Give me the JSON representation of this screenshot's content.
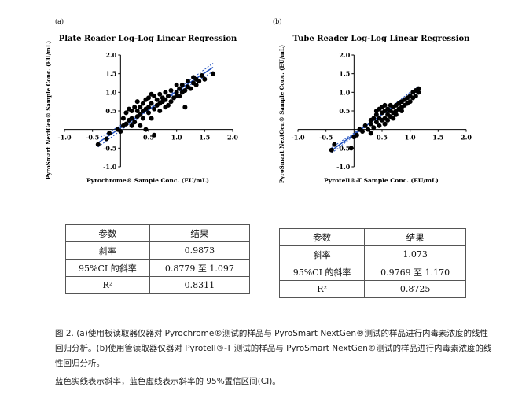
{
  "panels": [
    {
      "id": "a",
      "label": "(a)",
      "title": "Plate Reader Log-Log Linear Regression",
      "ylabel": "PyroSmart NextGen® Sample Conc. (EU/mL)",
      "xlabel": "Pyrochrome® Sample Conc. (EU/mL)",
      "table": {
        "headers": [
          "参数",
          "结果"
        ],
        "rows": [
          [
            "斜率",
            "0.9873"
          ],
          [
            "95%CI 的斜率",
            "0.8779 至 1.097"
          ],
          [
            "R²",
            "0.8311"
          ]
        ]
      }
    },
    {
      "id": "b",
      "label": "(b)",
      "title": "Tube Reader Log-Log Linear Regression",
      "ylabel": "PyroSmart NextGen® Sample Conc. (EU/mL)",
      "xlabel": "Pyrotell®-T Sample Conc. (EU/mL)",
      "table": {
        "headers": [
          "参数",
          "结果"
        ],
        "rows": [
          [
            "斜率",
            "1.073"
          ],
          [
            "95%CI 的斜率",
            "0.9769 至 1.170"
          ],
          [
            "R²",
            "0.8725"
          ]
        ]
      }
    }
  ],
  "caption": {
    "line1": "图 2. (a)使用板读取器仪器对 Pyrochrome®测试的样品与 PyroSmart NextGen®测试的样品进行内毒素浓度的线性回归分析。(b)使用管读取器仪器对 Pyrotell®-T 测试的样品与 PyroSmart NextGen®测试的样品进行内毒素浓度的线性回归分析。",
    "line2": "蓝色实线表示斜率，蓝色虚线表示斜率的 95%置信区间(CI)。"
  },
  "chart_data": [
    {
      "type": "scatter",
      "title": "Plate Reader Log-Log Linear Regression",
      "xlabel": "Pyrochrome® Sample Conc. (EU/mL)",
      "ylabel": "PyroSmart NextGen® Sample Conc. (EU/mL)",
      "xlim": [
        -1.0,
        2.0
      ],
      "ylim": [
        -1.0,
        2.0
      ],
      "xticks": [
        "-1.0",
        "-0.5",
        "0.5",
        "1.0",
        "1.5",
        "2.0"
      ],
      "yticks": [
        "-1.0",
        "-0.5",
        "0.5",
        "1.0",
        "1.5",
        "2.0"
      ],
      "regression": {
        "slope": 0.9873,
        "intercept": 0.04,
        "x_range": [
          -0.4,
          1.65
        ],
        "ci": [
          0.8779,
          1.097
        ],
        "color": "#1f4fbf"
      },
      "points": [
        [
          -0.4,
          -0.4
        ],
        [
          -0.25,
          -0.25
        ],
        [
          -0.2,
          -0.1
        ],
        [
          -0.05,
          0.0
        ],
        [
          0.0,
          -0.05
        ],
        [
          0.05,
          0.1
        ],
        [
          0.05,
          0.3
        ],
        [
          0.1,
          0.15
        ],
        [
          0.1,
          0.45
        ],
        [
          0.15,
          0.25
        ],
        [
          0.15,
          0.55
        ],
        [
          0.2,
          0.1
        ],
        [
          0.2,
          0.3
        ],
        [
          0.2,
          0.5
        ],
        [
          0.25,
          0.6
        ],
        [
          0.25,
          0.2
        ],
        [
          0.3,
          0.35
        ],
        [
          0.3,
          0.5
        ],
        [
          0.3,
          0.75
        ],
        [
          0.35,
          0.4
        ],
        [
          0.35,
          0.6
        ],
        [
          0.4,
          0.3
        ],
        [
          0.4,
          0.5
        ],
        [
          0.4,
          0.7
        ],
        [
          0.45,
          0.55
        ],
        [
          0.45,
          0.8
        ],
        [
          0.45,
          0.0
        ],
        [
          0.5,
          0.45
        ],
        [
          0.5,
          0.6
        ],
        [
          0.5,
          0.85
        ],
        [
          0.55,
          0.3
        ],
        [
          0.55,
          0.7
        ],
        [
          0.6,
          -0.15
        ],
        [
          0.6,
          0.55
        ],
        [
          0.6,
          0.9
        ],
        [
          0.65,
          0.65
        ],
        [
          0.65,
          0.8
        ],
        [
          0.7,
          0.5
        ],
        [
          0.7,
          0.7
        ],
        [
          0.7,
          0.95
        ],
        [
          0.75,
          0.75
        ],
        [
          0.75,
          0.85
        ],
        [
          0.8,
          0.6
        ],
        [
          0.8,
          0.8
        ],
        [
          0.8,
          1.0
        ],
        [
          0.85,
          0.9
        ],
        [
          0.9,
          0.75
        ],
        [
          0.9,
          1.05
        ],
        [
          0.95,
          0.85
        ],
        [
          1.0,
          1.0
        ],
        [
          1.0,
          1.2
        ],
        [
          1.05,
          0.9
        ],
        [
          1.05,
          1.1
        ],
        [
          1.1,
          1.0
        ],
        [
          1.1,
          1.2
        ],
        [
          1.15,
          0.6
        ],
        [
          1.15,
          1.05
        ],
        [
          1.2,
          1.15
        ],
        [
          1.2,
          1.3
        ],
        [
          1.25,
          1.1
        ],
        [
          1.3,
          1.25
        ],
        [
          1.3,
          1.4
        ],
        [
          1.35,
          1.2
        ],
        [
          1.35,
          1.35
        ],
        [
          1.4,
          1.3
        ],
        [
          1.45,
          1.45
        ],
        [
          1.5,
          1.35
        ],
        [
          1.65,
          1.5
        ],
        [
          0.35,
          0.1
        ],
        [
          0.55,
          0.95
        ],
        [
          0.85,
          0.65
        ],
        [
          1.0,
          0.9
        ]
      ]
    },
    {
      "type": "scatter",
      "title": "Tube Reader Log-Log Linear Regression",
      "xlabel": "Pyrotell®-T Sample Conc. (EU/mL)",
      "ylabel": "PyroSmart NextGen® Sample Conc. (EU/mL)",
      "xlim": [
        -1.0,
        2.0
      ],
      "ylim": [
        -1.0,
        2.0
      ],
      "xticks": [
        "-1.0",
        "-0.5",
        "0.5",
        "1.0",
        "1.5",
        "2.0"
      ],
      "yticks": [
        "-1.0",
        "-0.5",
        "0.5",
        "1.0",
        "1.5",
        "2.0"
      ],
      "regression": {
        "slope": 1.073,
        "intercept": -0.13,
        "x_range": [
          -0.4,
          1.15
        ],
        "ci": [
          0.9769,
          1.17
        ],
        "color": "#1f4fbf"
      },
      "points": [
        [
          -0.4,
          -0.55
        ],
        [
          -0.35,
          -0.4
        ],
        [
          -0.05,
          -0.5
        ],
        [
          0.0,
          -0.2
        ],
        [
          0.05,
          -0.15
        ],
        [
          0.1,
          0.0
        ],
        [
          0.15,
          -0.05
        ],
        [
          0.2,
          0.1
        ],
        [
          0.25,
          0.0
        ],
        [
          0.3,
          0.15
        ],
        [
          0.3,
          0.25
        ],
        [
          0.35,
          0.05
        ],
        [
          0.35,
          0.3
        ],
        [
          0.4,
          0.2
        ],
        [
          0.4,
          0.4
        ],
        [
          0.45,
          0.1
        ],
        [
          0.45,
          0.3
        ],
        [
          0.45,
          0.55
        ],
        [
          0.5,
          0.25
        ],
        [
          0.5,
          0.45
        ],
        [
          0.5,
          0.6
        ],
        [
          0.55,
          0.3
        ],
        [
          0.55,
          0.5
        ],
        [
          0.55,
          0.15
        ],
        [
          0.6,
          0.4
        ],
        [
          0.6,
          0.55
        ],
        [
          0.65,
          0.35
        ],
        [
          0.65,
          0.5
        ],
        [
          0.65,
          0.65
        ],
        [
          0.7,
          0.45
        ],
        [
          0.7,
          0.6
        ],
        [
          0.7,
          0.3
        ],
        [
          0.75,
          0.5
        ],
        [
          0.75,
          0.65
        ],
        [
          0.8,
          0.55
        ],
        [
          0.8,
          0.7
        ],
        [
          0.85,
          0.6
        ],
        [
          0.85,
          0.75
        ],
        [
          0.9,
          0.65
        ],
        [
          0.9,
          0.8
        ],
        [
          0.95,
          0.7
        ],
        [
          0.95,
          0.85
        ],
        [
          1.0,
          0.75
        ],
        [
          1.0,
          0.9
        ],
        [
          1.05,
          0.85
        ],
        [
          1.05,
          1.0
        ],
        [
          1.1,
          0.9
        ],
        [
          1.1,
          1.05
        ],
        [
          1.15,
          1.0
        ],
        [
          1.15,
          1.1
        ],
        [
          0.3,
          -0.1
        ],
        [
          0.4,
          0.5
        ],
        [
          0.55,
          0.65
        ],
        [
          0.75,
          0.4
        ],
        [
          0.85,
          0.5
        ],
        [
          0.6,
          0.25
        ]
      ]
    }
  ]
}
